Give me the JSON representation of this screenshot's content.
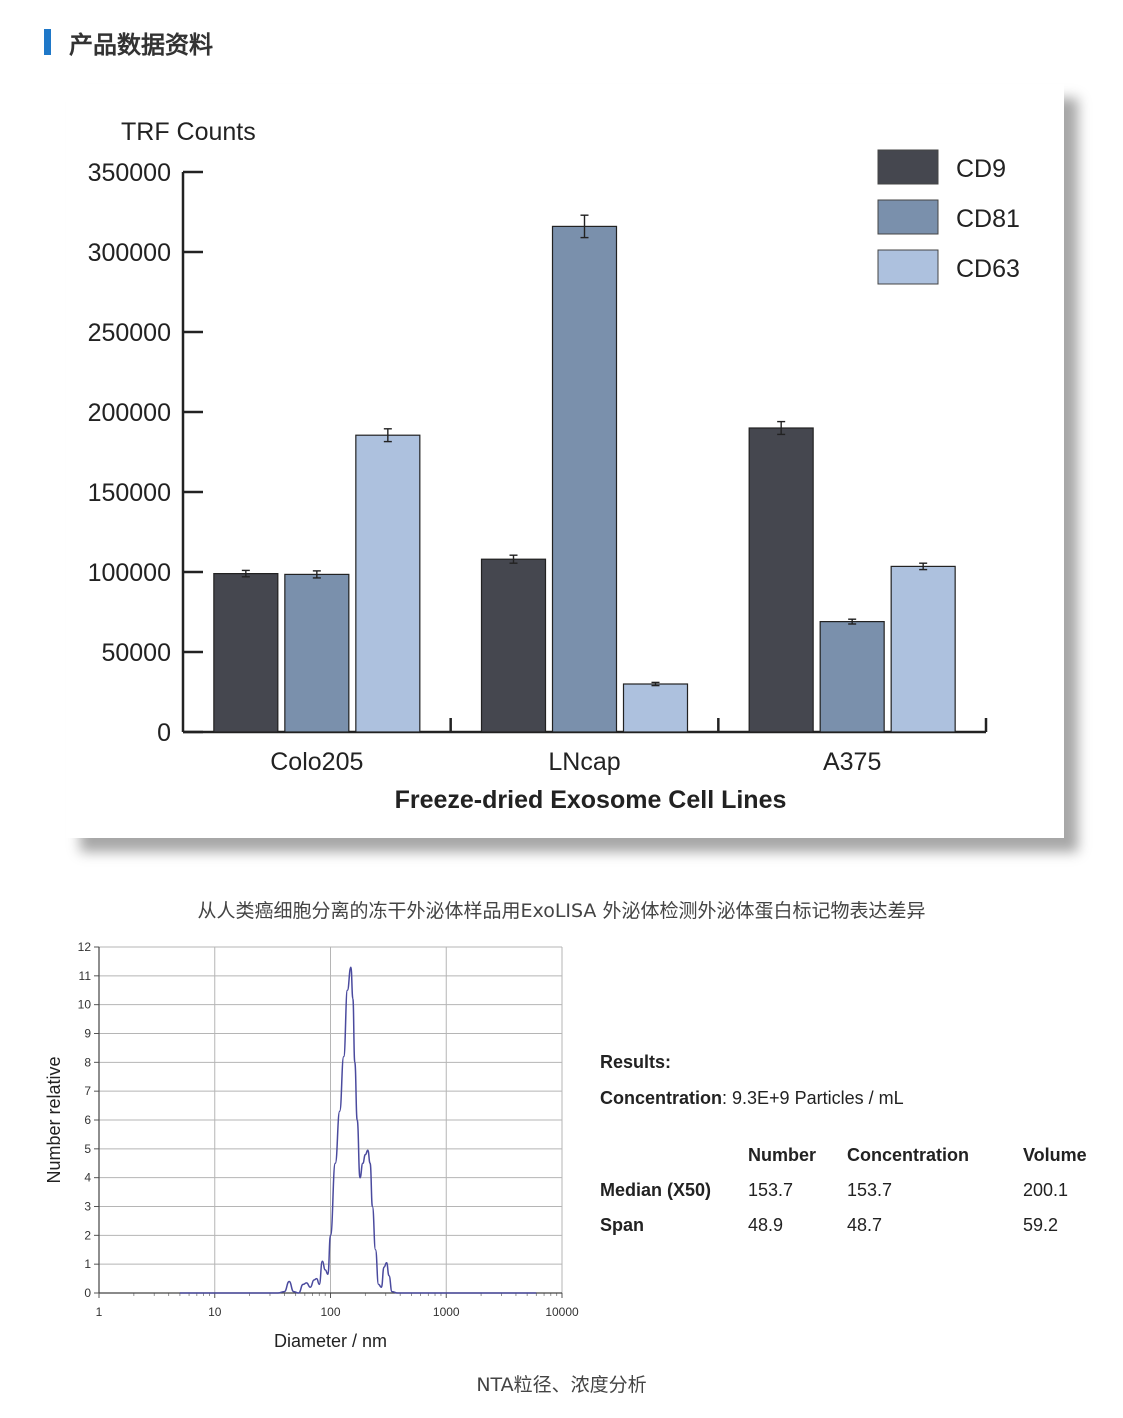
{
  "header": {
    "title": "产品数据资料"
  },
  "colors": {
    "accent": "#1f78c8",
    "CD9": "#45474f",
    "CD81": "#7a90ac",
    "CD63": "#adc1de"
  },
  "chart_data": [
    {
      "type": "bar",
      "ylabel": "TRF Counts",
      "xlabel": "Freeze-dried Exosome Cell Lines",
      "categories": [
        "Colo205",
        "LNcap",
        "A375"
      ],
      "ylim": [
        0,
        350000
      ],
      "yticks": [
        0,
        50000,
        100000,
        150000,
        200000,
        250000,
        300000,
        350000
      ],
      "legend_position": "top-right",
      "series": [
        {
          "name": "CD9",
          "color": "#45474f",
          "values": [
            99000,
            108000,
            190000
          ],
          "errors": [
            2000,
            2500,
            4000
          ]
        },
        {
          "name": "CD81",
          "color": "#7a90ac",
          "values": [
            98500,
            316000,
            69000
          ],
          "errors": [
            2200,
            7000,
            1500
          ]
        },
        {
          "name": "CD63",
          "color": "#adc1de",
          "values": [
            185500,
            30000,
            103500
          ],
          "errors": [
            4000,
            1000,
            2000
          ]
        }
      ]
    },
    {
      "type": "line",
      "xlabel": "Diameter / nm",
      "ylabel": "Number relative",
      "xscale": "log",
      "xlim": [
        1,
        10000
      ],
      "ylim": [
        0,
        12
      ],
      "xticks": [
        1,
        10,
        100,
        1000,
        10000
      ],
      "yticks": [
        0,
        1,
        2,
        3,
        4,
        5,
        6,
        7,
        8,
        9,
        10,
        11,
        12
      ],
      "grid": true,
      "series": [
        {
          "color": "#4a4a9e",
          "x": [
            5,
            35,
            40,
            44,
            48,
            53,
            58,
            62,
            67,
            72,
            76,
            80,
            85,
            90,
            95,
            100,
            110,
            120,
            130,
            140,
            150,
            156,
            162,
            170,
            180,
            190,
            200,
            210,
            220,
            230,
            245,
            260,
            275,
            290,
            305,
            320,
            340,
            380,
            450,
            6000
          ],
          "y": [
            0,
            0,
            0.05,
            0.4,
            0.05,
            0,
            0.3,
            0.35,
            0.2,
            0.45,
            0.5,
            0.3,
            1.1,
            0.8,
            0.65,
            2.0,
            4.5,
            6.3,
            8.2,
            10.5,
            11.3,
            10.2,
            8.0,
            6.0,
            4.0,
            4.5,
            4.8,
            4.95,
            4.5,
            3.0,
            1.5,
            0.3,
            0.2,
            0.9,
            1.05,
            0.6,
            0.05,
            0,
            0,
            0
          ]
        }
      ]
    }
  ],
  "results": {
    "title": "Results:",
    "concentration_label": "Concentration",
    "concentration_value": ": 9.3E+9 Particles / mL",
    "columns": [
      "Number",
      "Concentration",
      "Volume"
    ],
    "rows": [
      {
        "label": "Median (X50)",
        "values": [
          "153.7",
          "153.7",
          "200.1"
        ]
      },
      {
        "label": "Span",
        "values": [
          "48.9",
          "48.7",
          "59.2"
        ]
      }
    ]
  },
  "captions": {
    "figure1": "从人类癌细胞分离的冻干外泌体样品用ExoLISA 外泌体检测外泌体蛋白标记物表达差异",
    "figure2": "NTA粒径、浓度分析"
  }
}
